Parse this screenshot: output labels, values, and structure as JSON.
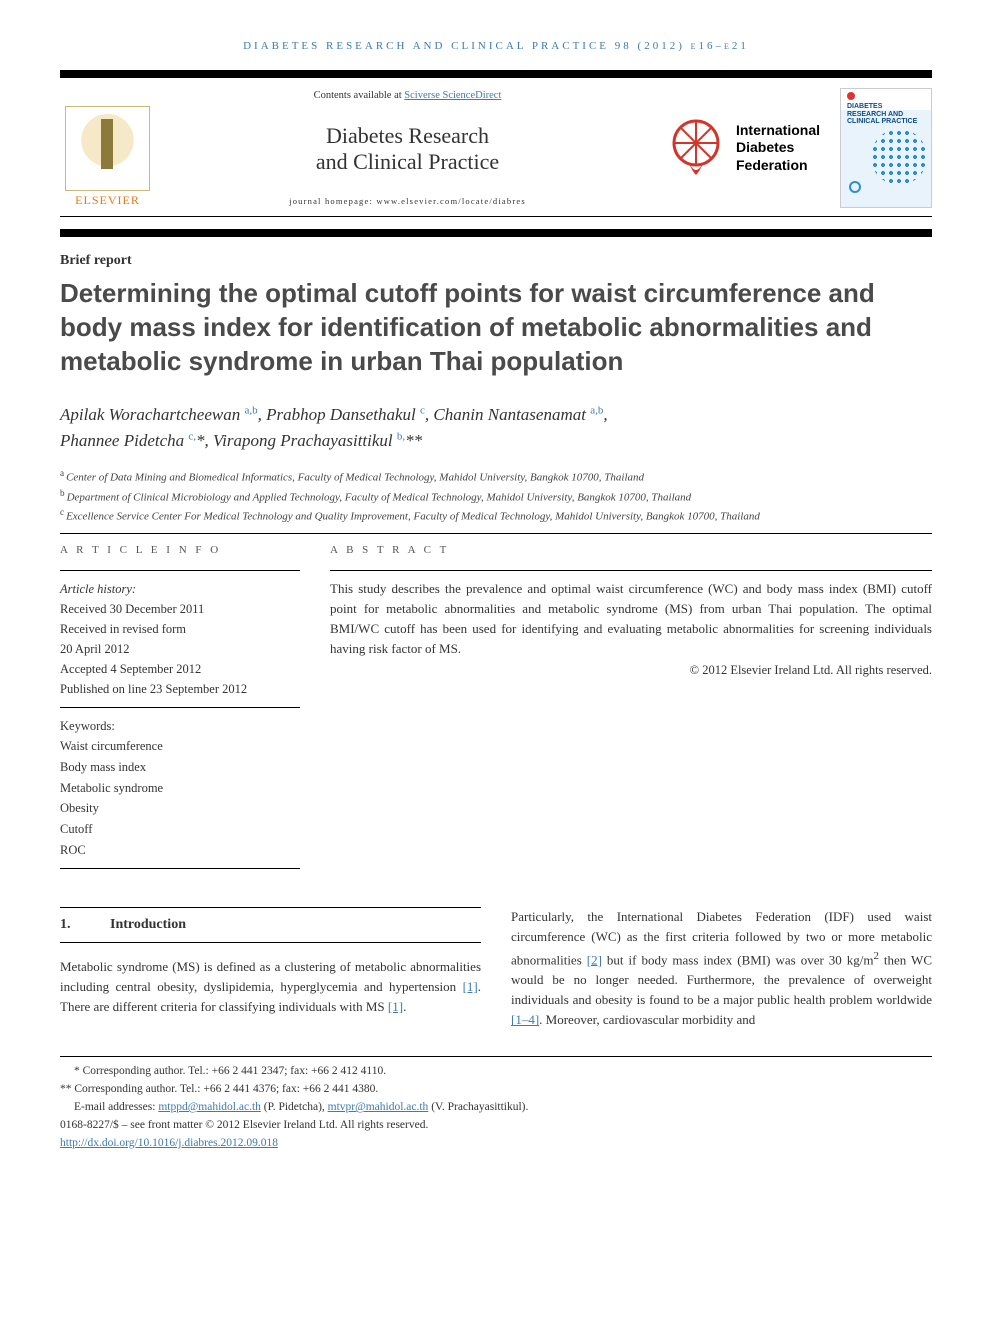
{
  "running_head": "DIABETES RESEARCH AND CLINICAL PRACTICE 98 (2012) e16–e21",
  "masthead": {
    "contents_prefix": "Contents available at ",
    "contents_link": "Sciverse ScienceDirect",
    "journal_name_l1": "Diabetes Research",
    "journal_name_l2": "and Clinical Practice",
    "homepage_label": "journal homepage: www.elsevier.com/locate/diabres",
    "elsevier_label": "ELSEVIER",
    "idf_l1": "International",
    "idf_l2": "Diabetes",
    "idf_l3": "Federation",
    "cover_label_l1": "DIABETES",
    "cover_label_l2": "RESEARCH AND",
    "cover_label_l3": "CLINICAL PRACTICE"
  },
  "article_type": "Brief report",
  "title": "Determining the optimal cutoff points for waist circumference and body mass index for identification of metabolic abnormalities and metabolic syndrome in urban Thai population",
  "authors_line1_html": "Apilak Worachartcheewan <sup class=\"sup-link\">a,b</sup>, Prabhop Dansethakul <sup class=\"sup-link\">c</sup>, Chanin Nantasenamat <sup class=\"sup-link\">a,b</sup>,",
  "authors_line2_html": "Phannee Pidetcha <sup class=\"sup-link\">c,</sup>*, Virapong Prachayasittikul <sup class=\"sup-link\">b,</sup>**",
  "affiliations": {
    "a": "Center of Data Mining and Biomedical Informatics, Faculty of Medical Technology, Mahidol University, Bangkok 10700, Thailand",
    "b": "Department of Clinical Microbiology and Applied Technology, Faculty of Medical Technology, Mahidol University, Bangkok 10700, Thailand",
    "c": "Excellence Service Center For Medical Technology and Quality Improvement, Faculty of Medical Technology, Mahidol University, Bangkok 10700, Thailand"
  },
  "article_info": {
    "heading": "A R T I C L E   I N F O",
    "history_label": "Article history:",
    "received": "Received 30 December 2011",
    "revised_l1": "Received in revised form",
    "revised_l2": "20 April 2012",
    "accepted": "Accepted 4 September 2012",
    "published": "Published on line 23 September 2012",
    "keywords_label": "Keywords:",
    "keywords": [
      "Waist circumference",
      "Body mass index",
      "Metabolic syndrome",
      "Obesity",
      "Cutoff",
      "ROC"
    ]
  },
  "abstract": {
    "heading": "A B S T R A C T",
    "text": "This study describes the prevalence and optimal waist circumference (WC) and body mass index (BMI) cutoff point for metabolic abnormalities and metabolic syndrome (MS) from urban Thai population. The optimal BMI/WC cutoff has been used for identifying and evaluating metabolic abnormalities for screening individuals having risk factor of MS.",
    "copyright": "© 2012 Elsevier Ireland Ltd. All rights reserved."
  },
  "section1": {
    "num": "1.",
    "title": "Introduction",
    "col1_html": "Metabolic syndrome (MS) is defined as a clustering of metabolic abnormalities including central obesity, dyslipidemia, hyperglycemia and hypertension <a class=\"cite-link\" href=\"#\" data-name=\"citation-link\" data-interactable=\"true\">[1]</a>. There are different criteria for classifying individuals with MS <a class=\"cite-link\" href=\"#\" data-name=\"citation-link\" data-interactable=\"true\">[1]</a>.",
    "col2_html": "Particularly, the International Diabetes Federation (IDF) used waist circumference (WC) as the first criteria followed by two or more metabolic abnormalities <a class=\"cite-link\" href=\"#\" data-name=\"citation-link\" data-interactable=\"true\">[2]</a> but if body mass index (BMI) was over 30 kg/m<sup>2</sup> then WC would be no longer needed. Furthermore, the prevalence of overweight individuals and obesity is found to be a major public health problem worldwide <a class=\"cite-link\" href=\"#\" data-name=\"citation-link\" data-interactable=\"true\">[1–4]</a>. Moreover, cardiovascular morbidity and"
  },
  "footnotes": {
    "corr1": "* Corresponding author. Tel.: +66 2 441 2347; fax: +66 2 412 4110.",
    "corr2": "** Corresponding author. Tel.: +66 2 441 4376; fax: +66 2 441 4380.",
    "email_prefix": "E-mail addresses: ",
    "email1": "mtppd@mahidol.ac.th",
    "email1_name": " (P. Pidetcha), ",
    "email2": "mtvpr@mahidol.ac.th",
    "email2_name": " (V. Prachayasittikul).",
    "issn": "0168-8227/$ – see front matter © 2012 Elsevier Ireland Ltd. All rights reserved.",
    "doi": "http://dx.doi.org/10.1016/j.diabres.2012.09.018"
  },
  "colors": {
    "link": "#3b7bb5",
    "elsevier_orange": "#e67817",
    "idf_red": "#d4352a"
  }
}
